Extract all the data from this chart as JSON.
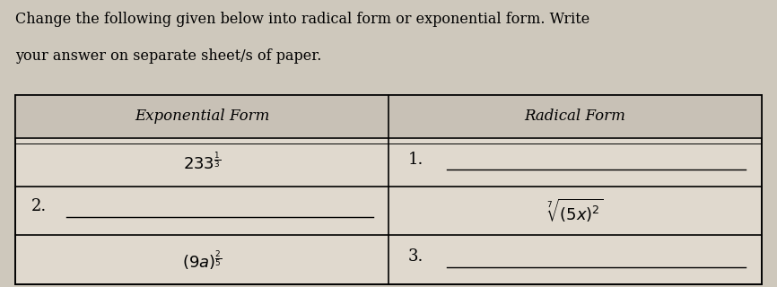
{
  "title_line1": "Change the following given below into radical form or exponential form. Write",
  "title_line2": "your answer on separate sheet/s of paper.",
  "col1_header": "Exponential Form",
  "col2_header": "Radical Form",
  "bg_color": "#cec8bc",
  "table_bg": "#e0d9ce",
  "header_bg": "#c8c1b6",
  "row1_exp": "$233^{\\frac{1}{3}}$",
  "row1_rad_label": "1.",
  "row2_exp_label": "2.",
  "row2_rad": "$\\sqrt[7]{(5x)^2}$",
  "row3_exp": "$(9a)^{\\frac{2}{5}}$",
  "row3_rad_label": "3.",
  "title_fontsize": 11.5,
  "header_fontsize": 12,
  "cell_fontsize": 13
}
